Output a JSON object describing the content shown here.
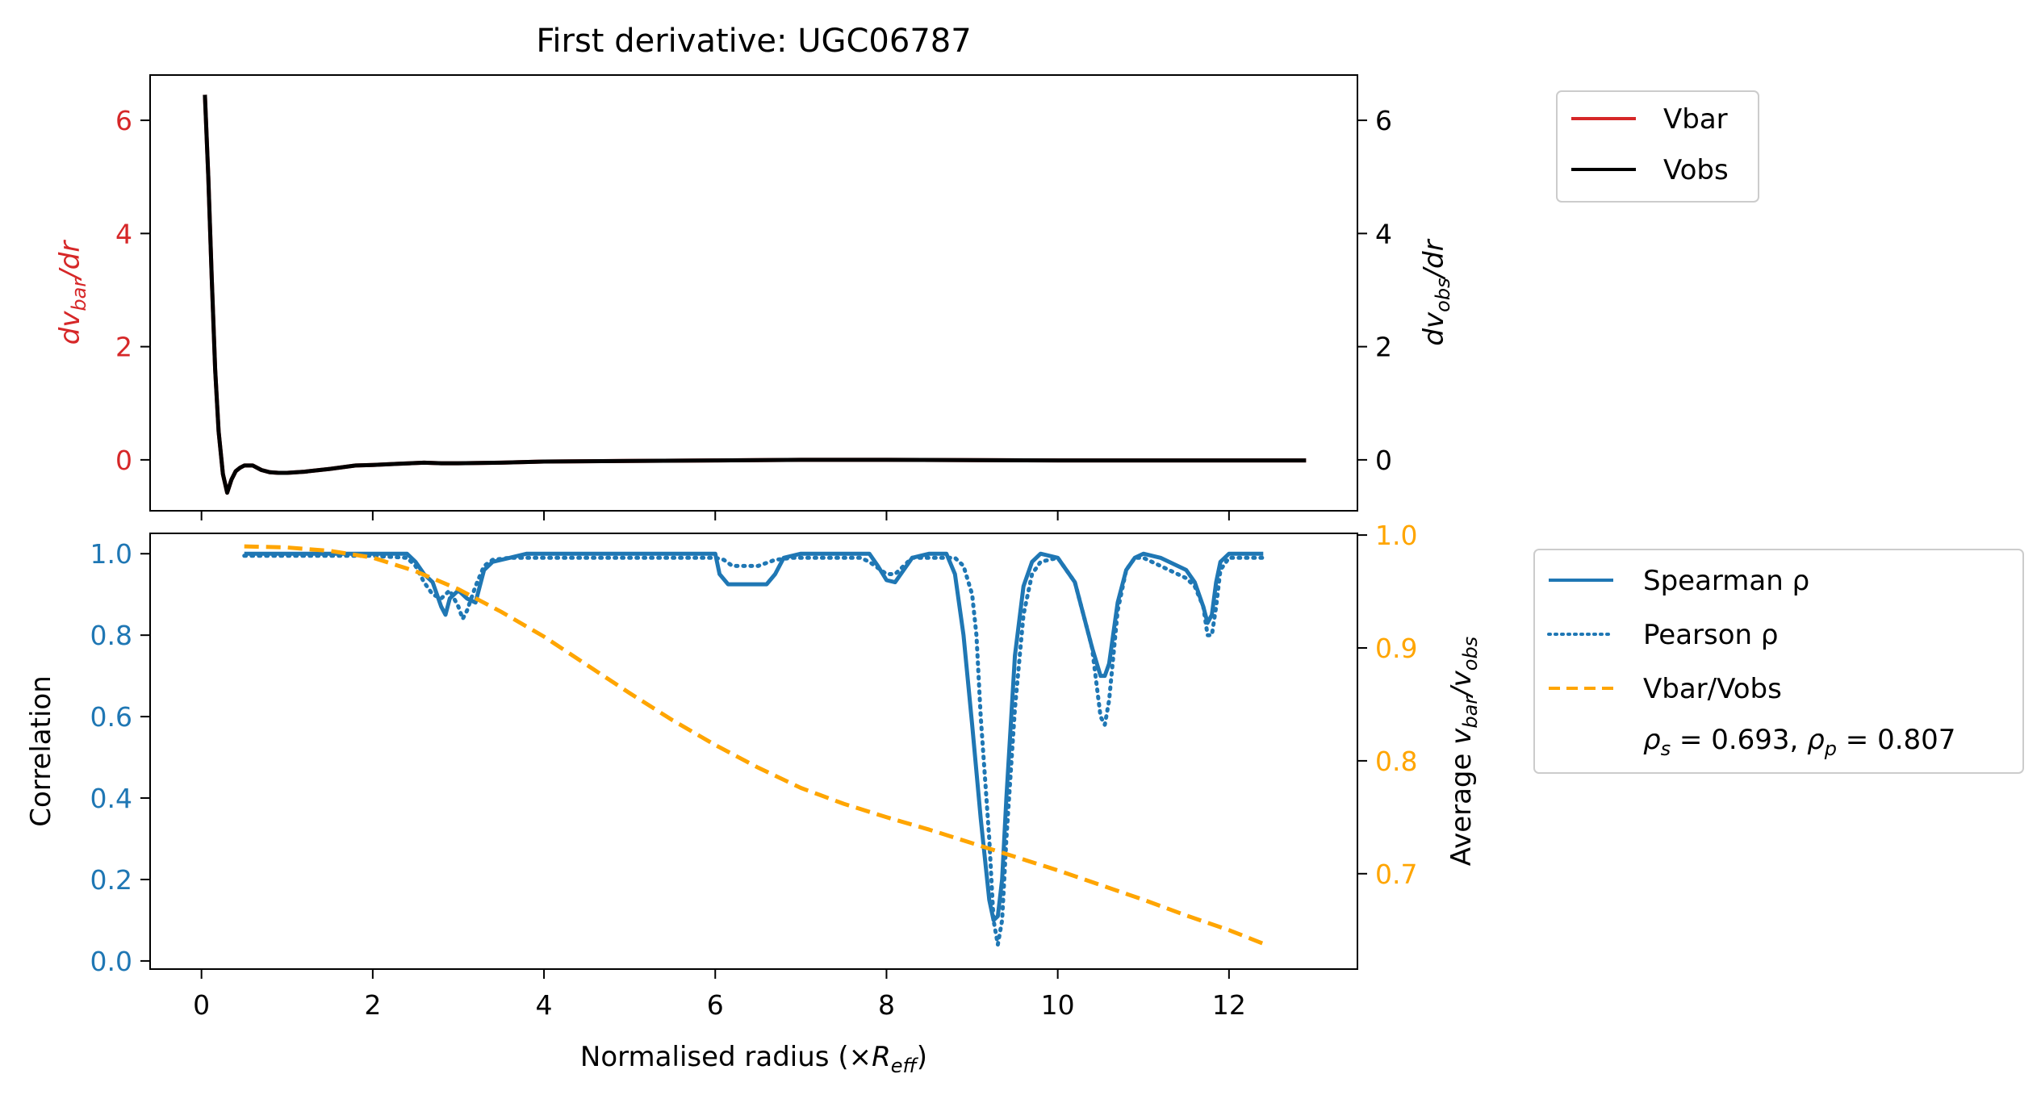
{
  "chart_data": [
    {
      "type": "line",
      "title": "First derivative: UGC06787",
      "ylabel_left_parts": [
        "dv",
        "bar",
        "/dr"
      ],
      "ylabel_right_parts": [
        "dv",
        "obs",
        "/dr"
      ],
      "ylim": [
        -0.9,
        6.8
      ],
      "xlim": [
        -0.6,
        13.5
      ],
      "yticks_left": [
        "0",
        "2",
        "4",
        "6"
      ],
      "yticks_right": [
        "0",
        "2",
        "4",
        "6"
      ],
      "left_axis_color": "#d62728",
      "right_axis_color": "#000000",
      "legend": {
        "position": "outside-top-right",
        "entries": [
          "Vbar",
          "Vobs"
        ]
      },
      "series": [
        {
          "name": "Vbar",
          "color": "#d62728",
          "axis": "left",
          "x": [
            0.04,
            0.08,
            0.12,
            0.16,
            0.2,
            0.25,
            0.3,
            0.35,
            0.4,
            0.45,
            0.5,
            0.6,
            0.7,
            0.8,
            0.9,
            1.0,
            1.2,
            1.5,
            1.8,
            2.0,
            2.3,
            2.6,
            2.8,
            3.0,
            3.5,
            4.0,
            5.0,
            6.0,
            7.0,
            8.0,
            9.0,
            10.0,
            11.0,
            12.0,
            12.9
          ],
          "y": [
            6.45,
            5.0,
            3.2,
            1.6,
            0.5,
            -0.25,
            -0.58,
            -0.35,
            -0.2,
            -0.14,
            -0.1,
            -0.1,
            -0.18,
            -0.22,
            -0.23,
            -0.23,
            -0.21,
            -0.16,
            -0.1,
            -0.09,
            -0.07,
            -0.05,
            -0.06,
            -0.06,
            -0.05,
            -0.03,
            -0.02,
            -0.01,
            0.0,
            0.0,
            -0.005,
            -0.01,
            -0.01,
            -0.01,
            -0.01
          ]
        },
        {
          "name": "Vobs",
          "color": "#000000",
          "axis": "right",
          "x": [
            0.04,
            0.08,
            0.12,
            0.16,
            0.2,
            0.25,
            0.3,
            0.35,
            0.4,
            0.45,
            0.5,
            0.6,
            0.7,
            0.8,
            0.9,
            1.0,
            1.2,
            1.5,
            1.8,
            2.0,
            2.3,
            2.6,
            2.8,
            3.0,
            3.5,
            4.0,
            5.0,
            6.0,
            7.0,
            8.0,
            9.0,
            10.0,
            11.0,
            12.0,
            12.9
          ],
          "y": [
            6.45,
            5.0,
            3.2,
            1.6,
            0.5,
            -0.25,
            -0.58,
            -0.35,
            -0.2,
            -0.14,
            -0.1,
            -0.1,
            -0.18,
            -0.22,
            -0.23,
            -0.23,
            -0.21,
            -0.16,
            -0.1,
            -0.09,
            -0.07,
            -0.05,
            -0.06,
            -0.06,
            -0.05,
            -0.03,
            -0.02,
            -0.01,
            0.0,
            0.0,
            -0.005,
            -0.01,
            -0.01,
            -0.01,
            -0.01
          ]
        }
      ]
    },
    {
      "type": "line",
      "xlabel_parts": [
        "Normalised radius (×",
        "R",
        "eff",
        ")"
      ],
      "ylabel_left": "Correlation",
      "ylabel_right_parts": [
        "Average ",
        "v",
        "bar",
        "/",
        "v",
        "obs"
      ],
      "xlim": [
        -0.6,
        13.5
      ],
      "ylim_left": [
        -0.02,
        1.05
      ],
      "ylim_right": [
        0.6155,
        1.0015
      ],
      "xticks": [
        "0",
        "2",
        "4",
        "6",
        "8",
        "10",
        "12"
      ],
      "yticks_left": [
        "0.0",
        "0.2",
        "0.4",
        "0.6",
        "0.8",
        "1.0"
      ],
      "yticks_right": [
        "0.7",
        "0.8",
        "0.9",
        "1.0"
      ],
      "left_axis_color": "#1f77b4",
      "right_axis_color": "#ffa500",
      "legend": {
        "position": "outside-right",
        "entries": [
          "Spearman ρ",
          "Pearson ρ",
          "Vbar/Vobs"
        ],
        "annotation_parts": [
          "ρ",
          "s",
          " = 0.693, ",
          "ρ",
          "p",
          " = 0.807"
        ]
      },
      "series": [
        {
          "name": "Spearman ρ",
          "color": "#1f77b4",
          "style": "solid",
          "axis": "left",
          "x": [
            0.5,
            1.0,
            2.0,
            2.4,
            2.5,
            2.6,
            2.7,
            2.8,
            2.85,
            2.9,
            3.0,
            3.1,
            3.2,
            3.3,
            3.4,
            3.6,
            3.8,
            4.0,
            5.0,
            6.0,
            6.05,
            6.15,
            6.6,
            6.7,
            6.8,
            7.0,
            7.8,
            7.9,
            8.0,
            8.1,
            8.2,
            8.3,
            8.5,
            8.7,
            8.8,
            8.9,
            9.0,
            9.1,
            9.2,
            9.25,
            9.3,
            9.35,
            9.4,
            9.5,
            9.6,
            9.7,
            9.8,
            10.0,
            10.2,
            10.3,
            10.4,
            10.5,
            10.55,
            10.6,
            10.7,
            10.8,
            10.9,
            11.0,
            11.2,
            11.5,
            11.6,
            11.7,
            11.75,
            11.8,
            11.85,
            11.9,
            12.0,
            12.4
          ],
          "y": [
            1.0,
            1.0,
            1.0,
            1.0,
            0.98,
            0.95,
            0.93,
            0.87,
            0.85,
            0.89,
            0.91,
            0.89,
            0.88,
            0.96,
            0.98,
            0.99,
            1.0,
            1.0,
            1.0,
            1.0,
            0.95,
            0.925,
            0.925,
            0.95,
            0.99,
            1.0,
            1.0,
            0.97,
            0.935,
            0.93,
            0.96,
            0.99,
            1.0,
            1.0,
            0.95,
            0.8,
            0.58,
            0.35,
            0.15,
            0.1,
            0.11,
            0.2,
            0.4,
            0.75,
            0.92,
            0.98,
            1.0,
            0.99,
            0.93,
            0.85,
            0.77,
            0.7,
            0.7,
            0.73,
            0.88,
            0.96,
            0.99,
            1.0,
            0.99,
            0.96,
            0.93,
            0.87,
            0.83,
            0.85,
            0.93,
            0.98,
            1.0,
            1.0
          ]
        },
        {
          "name": "Pearson ρ",
          "color": "#1f77b4",
          "style": "dotted",
          "axis": "left",
          "x": [
            0.5,
            1.0,
            2.0,
            2.4,
            2.5,
            2.6,
            2.7,
            2.8,
            2.85,
            2.9,
            3.0,
            3.05,
            3.1,
            3.2,
            3.3,
            3.4,
            3.6,
            4.0,
            5.0,
            6.0,
            6.1,
            6.2,
            6.5,
            6.7,
            6.9,
            7.0,
            7.7,
            7.8,
            8.0,
            8.1,
            8.2,
            8.3,
            8.5,
            8.8,
            8.9,
            9.0,
            9.05,
            9.1,
            9.2,
            9.25,
            9.3,
            9.35,
            9.4,
            9.5,
            9.6,
            9.7,
            9.8,
            10.0,
            10.2,
            10.3,
            10.4,
            10.5,
            10.55,
            10.6,
            10.7,
            10.8,
            10.9,
            11.0,
            11.2,
            11.5,
            11.6,
            11.7,
            11.75,
            11.8,
            11.85,
            11.9,
            12.0,
            12.4
          ],
          "y": [
            0.995,
            0.995,
            0.995,
            0.99,
            0.97,
            0.93,
            0.9,
            0.89,
            0.9,
            0.91,
            0.87,
            0.84,
            0.86,
            0.92,
            0.97,
            0.985,
            0.99,
            0.99,
            0.99,
            0.99,
            0.985,
            0.97,
            0.97,
            0.985,
            0.99,
            0.99,
            0.99,
            0.98,
            0.95,
            0.95,
            0.97,
            0.99,
            0.99,
            0.99,
            0.97,
            0.9,
            0.8,
            0.6,
            0.3,
            0.1,
            0.04,
            0.1,
            0.3,
            0.62,
            0.85,
            0.95,
            0.98,
            0.99,
            0.93,
            0.85,
            0.77,
            0.6,
            0.58,
            0.64,
            0.86,
            0.96,
            0.99,
            0.99,
            0.97,
            0.94,
            0.92,
            0.87,
            0.8,
            0.8,
            0.87,
            0.96,
            0.99,
            0.99
          ]
        },
        {
          "name": "Vbar/Vobs",
          "color": "#ffa500",
          "style": "dashed",
          "axis": "right",
          "x": [
            0.5,
            1.0,
            1.5,
            2.0,
            2.5,
            3.0,
            3.5,
            4.0,
            4.5,
            5.0,
            5.5,
            6.0,
            6.5,
            7.0,
            7.5,
            8.0,
            8.5,
            9.0,
            9.5,
            10.0,
            10.5,
            11.0,
            11.5,
            12.0,
            12.4
          ],
          "y": [
            0.99,
            0.989,
            0.986,
            0.98,
            0.968,
            0.952,
            0.932,
            0.91,
            0.885,
            0.86,
            0.836,
            0.814,
            0.794,
            0.776,
            0.762,
            0.75,
            0.739,
            0.727,
            0.715,
            0.703,
            0.69,
            0.677,
            0.663,
            0.65,
            0.638
          ]
        }
      ]
    }
  ]
}
